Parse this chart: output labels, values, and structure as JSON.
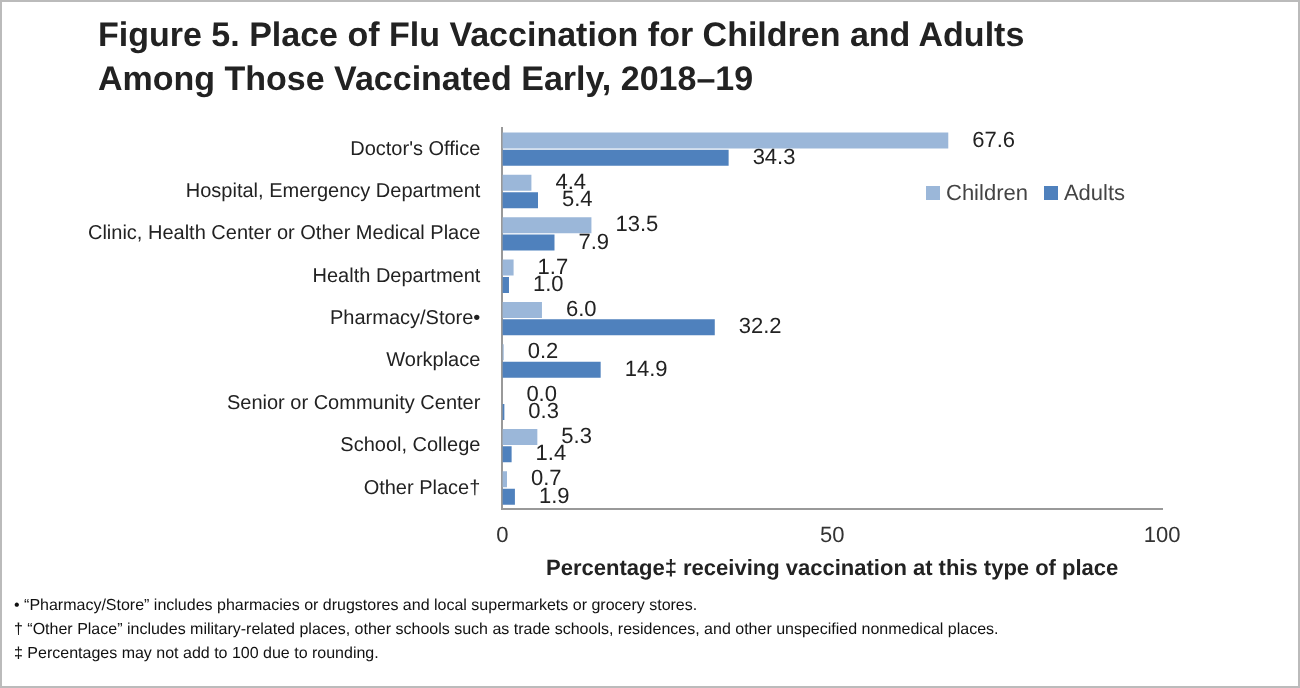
{
  "chart_data": {
    "type": "bar",
    "orientation": "horizontal",
    "title": "Figure 5. Place of Flu Vaccination for Children and Adults Among Those Vaccinated Early, 2018–19",
    "xlabel": "Percentage‡ receiving vaccination at this type of place",
    "categories": [
      "Doctor's Office",
      "Hospital, Emergency Department",
      "Clinic, Health Center or Other Medical Place",
      "Health Department",
      "Pharmacy/Store•",
      "Workplace",
      "Senior or Community Center",
      "School, College",
      "Other Place†"
    ],
    "series": [
      {
        "name": "Children",
        "color": "#9bb7d9",
        "values": [
          67.6,
          4.4,
          13.5,
          1.7,
          6.0,
          0.2,
          0.0,
          5.3,
          0.7
        ],
        "value_labels": [
          "67.6",
          "4.4",
          "13.5",
          "1.7",
          "6.0",
          "0.2",
          "0.0",
          "5.3",
          "0.7"
        ]
      },
      {
        "name": "Adults",
        "color": "#4f81bd",
        "values": [
          34.3,
          5.4,
          7.9,
          1.0,
          32.2,
          14.9,
          0.3,
          1.4,
          1.9
        ],
        "value_labels": [
          "34.3",
          "5.4",
          "7.9",
          "1.0",
          "32.2",
          "14.9",
          "0.3",
          "1.4",
          "1.9"
        ]
      }
    ],
    "xlim": [
      0,
      100
    ],
    "xticks": [
      0,
      50,
      100
    ],
    "grid": false,
    "legend": "top right",
    "annotations": [
      "• “Pharmacy/Store” includes pharmacies or drugstores and local supermarkets or grocery stores.",
      "† “Other Place” includes military-related places, other schools such as trade schools, residences, and other unspecified nonmedical places.",
      "‡ Percentages may not add to 100 due to rounding."
    ]
  }
}
